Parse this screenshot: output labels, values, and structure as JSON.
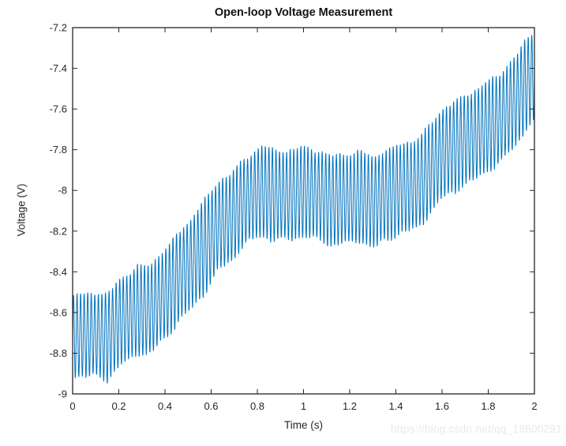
{
  "figure": {
    "background_color": "#ffffff"
  },
  "watermark": {
    "text": "https://blog.csdn.net/qq_19600291",
    "color": "#e9e9e9"
  },
  "chart_data": {
    "type": "line",
    "title": "Open-loop Voltage Measurement",
    "xlabel": "Time (s)",
    "ylabel": "Voltage (V)",
    "xlim": [
      0,
      2
    ],
    "ylim": [
      -9,
      -7.2
    ],
    "grid": false,
    "legend": "none",
    "box": true,
    "tick_direction": "in",
    "line_color": "#0072BD",
    "axis_color": "#262626",
    "x_ticks": [
      0,
      0.2,
      0.4,
      0.6,
      0.8,
      1,
      1.2,
      1.4,
      1.6,
      1.8,
      2
    ],
    "x_tick_labels": [
      "0",
      "0.2",
      "0.4",
      "0.6",
      "0.8",
      "1",
      "1.2",
      "1.4",
      "1.6",
      "1.8",
      "2"
    ],
    "y_ticks": [
      -9,
      -8.8,
      -8.6,
      -8.4,
      -8.2,
      -8,
      -7.8,
      -7.6,
      -7.4,
      -7.2
    ],
    "y_tick_labels": [
      "-9",
      "-8.8",
      "-8.6",
      "-8.4",
      "-8.2",
      "-8",
      "-7.8",
      "-7.6",
      "-7.4",
      "-7.2"
    ],
    "signal": {
      "description": "High-frequency oscillation riding on a slowly rising mean voltage; V(t) = trend(t) + amplitude(t)*sin(2*pi*f*t) + small noise",
      "frequency_hz": 65,
      "duration_s": 2,
      "sample_step_s": 0.0005,
      "trend_t": [
        0.0,
        0.08,
        0.15,
        0.22,
        0.28,
        0.35,
        0.42,
        0.49,
        0.56,
        0.63,
        0.69,
        0.76,
        0.83,
        0.9,
        0.97,
        1.04,
        1.1,
        1.17,
        1.24,
        1.31,
        1.38,
        1.45,
        1.52,
        1.58,
        1.65,
        1.72,
        1.79,
        1.86,
        1.93,
        2.0
      ],
      "trend_v": [
        -8.73,
        -8.7,
        -8.72,
        -8.64,
        -8.59,
        -8.57,
        -8.49,
        -8.38,
        -8.3,
        -8.18,
        -8.12,
        -8.04,
        -8.01,
        -8.02,
        -8.02,
        -8.01,
        -8.04,
        -8.05,
        -8.03,
        -8.05,
        -8.02,
        -7.98,
        -7.94,
        -7.85,
        -7.78,
        -7.74,
        -7.7,
        -7.63,
        -7.54,
        -7.44
      ],
      "amplitude_v": [
        0.2,
        0.205,
        0.21,
        0.215,
        0.215,
        0.22,
        0.22,
        0.22,
        0.23,
        0.22,
        0.215,
        0.21,
        0.225,
        0.22,
        0.22,
        0.22,
        0.22,
        0.22,
        0.22,
        0.225,
        0.22,
        0.22,
        0.22,
        0.22,
        0.22,
        0.22,
        0.22,
        0.22,
        0.22,
        0.22
      ],
      "trend_noise_v": 0.006,
      "amplitude_noise_rel": 0.07
    }
  }
}
